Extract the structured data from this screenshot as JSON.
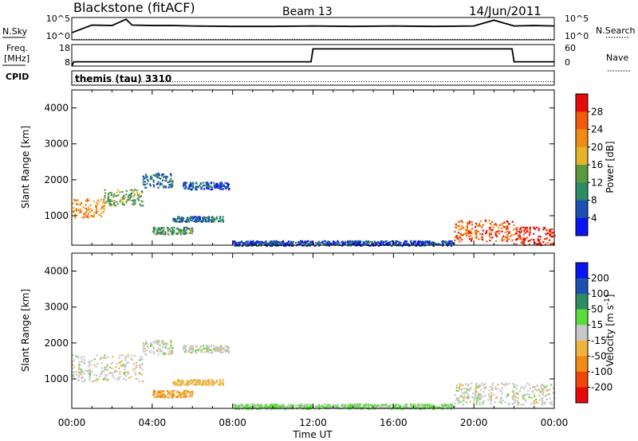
{
  "header": {
    "station": "Blackstone (fitACF)",
    "beam": "Beam 13",
    "date": "14/Jun/2011"
  },
  "nsky_panel": {
    "left_label": "N.Sky",
    "right_label": "N.Search",
    "left_ticks": [
      "10^5",
      "10^0"
    ],
    "right_ticks": [
      "10^5",
      "10^0"
    ]
  },
  "freq_panel": {
    "left_label_line1": "Freq.",
    "left_label_line2": "[MHz]",
    "right_label": "Nave",
    "left_ticks": [
      "18",
      "8"
    ],
    "right_ticks": [
      "60",
      "0"
    ]
  },
  "cpid_panel": {
    "label": "CPID",
    "text": "themis (tau) 3310"
  },
  "colors": {
    "power_scale": [
      "#0a14f0",
      "#1e50b4",
      "#2e8c64",
      "#5a9a3c",
      "#e6b428",
      "#f08c14",
      "#f05a0a",
      "#e60a0a"
    ],
    "velocity_scale": [
      "#e60a0a",
      "#f0460a",
      "#f08c14",
      "#f0b43c",
      "#c8c8c8",
      "#5adc3c",
      "#2e8c64",
      "#1e50b4",
      "#0a14f0"
    ],
    "ground_scatter": "#c8c8c8"
  },
  "chart_data": [
    {
      "type": "line",
      "panel": "N.Sky / N.Search",
      "x": [
        0,
        1,
        2,
        2.7,
        3,
        4,
        5,
        6,
        8,
        10,
        12,
        14,
        16,
        18,
        20,
        21,
        22,
        23,
        24
      ],
      "series": [
        {
          "values": [
            1.6,
            3.3,
            3.2,
            4.6,
            3.3,
            3.2,
            3.2,
            3.1,
            3.0,
            3.0,
            3.1,
            3.0,
            3.1,
            3.0,
            3.1,
            4.4,
            3.1,
            3.2,
            3.1
          ]
        },
        {
          "values": [
            0.1,
            0.1,
            0.1,
            0.1,
            0.1,
            0.1,
            0.1,
            0.1,
            0.1,
            0.1,
            0.1,
            0.1,
            0.1,
            0.1,
            0.1,
            0.1,
            0.1,
            0.1,
            0.1
          ]
        }
      ],
      "ylim_log10": [
        0,
        5
      ],
      "xlim": [
        0,
        24
      ]
    },
    {
      "type": "line",
      "panel": "Freq / Nave",
      "x": [
        0,
        0.1,
        11.9,
        12.0,
        21.9,
        22.0,
        24
      ],
      "series": [
        {
          "values": [
            8,
            10,
            10,
            16,
            16,
            10,
            10
          ]
        },
        {
          "values": [
            0,
            0,
            0,
            0,
            0,
            0,
            0
          ]
        }
      ],
      "ylim": [
        8,
        18
      ],
      "xlim": [
        0,
        24
      ]
    },
    {
      "type": "heatmap",
      "title": "",
      "ylabel": "Slant Range [km]",
      "colorbar_label": "Power [dB]",
      "colorbar_ticks": [
        "28",
        "24",
        "20",
        "16",
        "12",
        "8",
        "4"
      ],
      "yticks": [
        "4000",
        "3000",
        "2000",
        "1000"
      ],
      "ylim": [
        180,
        4500
      ],
      "xlim": [
        0,
        24
      ],
      "xticks": [
        "00:00",
        "04:00",
        "08:00",
        "12:00",
        "16:00",
        "20:00",
        "00:00"
      ],
      "regions": [
        {
          "t0": 0.0,
          "t1": 1.6,
          "r0": 950,
          "r1": 1500,
          "power": 22
        },
        {
          "t0": 1.6,
          "t1": 3.5,
          "r0": 1300,
          "r1": 1750,
          "power": 14
        },
        {
          "t0": 3.5,
          "t1": 5.0,
          "r0": 1800,
          "r1": 2200,
          "power": 8
        },
        {
          "t0": 4.0,
          "t1": 6.0,
          "r0": 500,
          "r1": 700,
          "power": 12
        },
        {
          "t0": 5.0,
          "t1": 7.5,
          "r0": 850,
          "r1": 1000,
          "power": 8
        },
        {
          "t0": 5.5,
          "t1": 7.8,
          "r0": 1750,
          "r1": 1950,
          "power": 6
        },
        {
          "t0": 8.0,
          "t1": 19.0,
          "r0": 180,
          "r1": 320,
          "power": 5
        },
        {
          "t0": 19.0,
          "t1": 22.0,
          "r0": 300,
          "r1": 900,
          "power": 26
        },
        {
          "t0": 22.0,
          "t1": 24.0,
          "r0": 200,
          "r1": 700,
          "power": 30
        }
      ]
    },
    {
      "type": "heatmap",
      "title": "",
      "xlabel": "Time UT",
      "ylabel": "Slant Range [km]",
      "colorbar_label": "Velocity [m s^-1]",
      "colorbar_ticks": [
        "200",
        "100",
        "50",
        "15",
        "-15",
        "-50",
        "-100",
        "-200"
      ],
      "yticks": [
        "4000",
        "3000",
        "2000",
        "1000"
      ],
      "ylim": [
        180,
        4500
      ],
      "xlim": [
        0,
        24
      ],
      "xticks": [
        "00:00",
        "04:00",
        "08:00",
        "12:00",
        "16:00",
        "20:00",
        "00:00"
      ],
      "regions": [
        {
          "t0": 0.0,
          "t1": 3.5,
          "r0": 950,
          "r1": 1700,
          "velocity": 0
        },
        {
          "t0": 3.5,
          "t1": 5.0,
          "r0": 1700,
          "r1": 2100,
          "velocity": 0
        },
        {
          "t0": 4.0,
          "t1": 6.0,
          "r0": 500,
          "r1": 700,
          "velocity": -50
        },
        {
          "t0": 5.0,
          "t1": 7.5,
          "r0": 850,
          "r1": 1000,
          "velocity": -30
        },
        {
          "t0": 5.5,
          "t1": 7.8,
          "r0": 1750,
          "r1": 1950,
          "velocity": 0
        },
        {
          "t0": 8.0,
          "t1": 19.0,
          "r0": 180,
          "r1": 320,
          "velocity": 20
        },
        {
          "t0": 19.0,
          "t1": 24.0,
          "r0": 300,
          "r1": 900,
          "velocity": 0
        }
      ]
    }
  ]
}
